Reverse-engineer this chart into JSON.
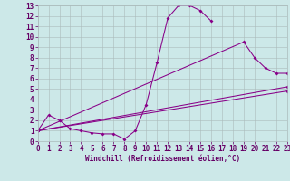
{
  "xlabel": "Windchill (Refroidissement éolien,°C)",
  "bg_color": "#cce8e8",
  "line_color": "#880088",
  "grid_color": "#aabbbb",
  "xmin": 0,
  "xmax": 23,
  "ymin": 0,
  "ymax": 13,
  "line1_x": [
    0,
    1,
    2,
    3,
    4,
    5,
    6,
    7,
    8,
    9,
    10,
    11,
    12,
    13,
    14,
    15,
    16
  ],
  "line1_y": [
    1.0,
    2.5,
    2.0,
    1.2,
    1.0,
    0.8,
    0.7,
    0.7,
    0.2,
    1.0,
    3.5,
    7.5,
    11.8,
    13.0,
    13.0,
    12.5,
    11.5
  ],
  "line2_x": [
    0,
    23
  ],
  "line2_y": [
    1.0,
    4.8
  ],
  "line3_x": [
    0,
    19,
    20,
    21,
    22,
    23
  ],
  "line3_y": [
    1.0,
    9.5,
    8.0,
    7.0,
    6.5,
    6.5
  ],
  "line4_x": [
    0,
    23
  ],
  "line4_y": [
    1.0,
    4.8
  ],
  "tick_color": "#660066",
  "tick_fontsize": 5.5,
  "xlabel_fontsize": 5.5
}
